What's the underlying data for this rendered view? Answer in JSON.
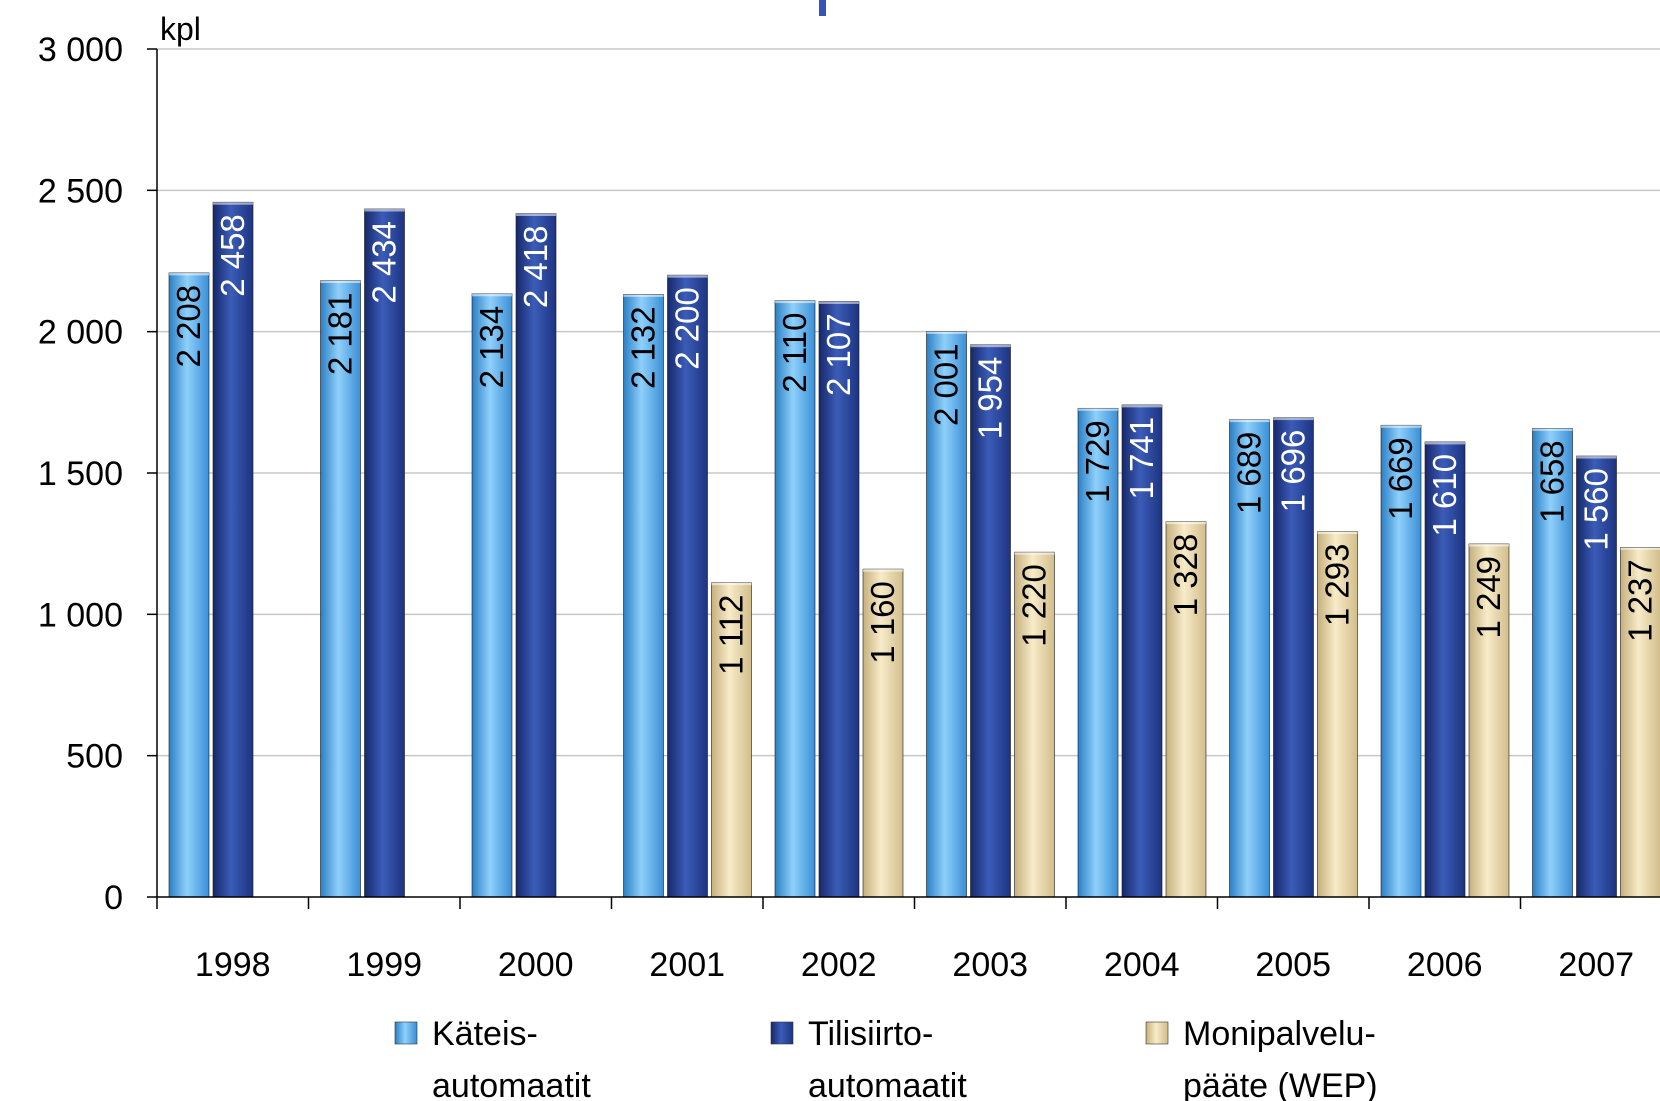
{
  "chart_data": {
    "type": "bar",
    "ylabel": "kpl",
    "ylim": [
      0,
      3000
    ],
    "yticks": [
      0,
      500,
      1000,
      1500,
      2000,
      2500,
      3000
    ],
    "ytick_labels": [
      "0",
      "500",
      "1 000",
      "1 500",
      "2 000",
      "2 500",
      "3 000"
    ],
    "categories": [
      "1998",
      "1999",
      "2000",
      "2001",
      "2002",
      "2003",
      "2004",
      "2005",
      "2006",
      "2007"
    ],
    "grid": true,
    "legend_position": "bottom",
    "series": [
      {
        "name_lines": [
          "Käteis-",
          "automaatit"
        ],
        "color": "#4aa3e6",
        "label_color": "#000000",
        "values": [
          2208,
          2181,
          2134,
          2132,
          2110,
          2001,
          1729,
          1689,
          1669,
          1658
        ],
        "labels": [
          "2 208",
          "2 181",
          "2 134",
          "2 132",
          "2 110",
          "2 001",
          "1 729",
          "1 689",
          "1 669",
          "1 658"
        ]
      },
      {
        "name_lines": [
          "Tilisiirto-",
          "automaatit"
        ],
        "color": "#23408f",
        "label_color": "#ffffff",
        "values": [
          2458,
          2434,
          2418,
          2200,
          2107,
          1954,
          1741,
          1696,
          1610,
          1560
        ],
        "labels": [
          "2 458",
          "2 434",
          "2 418",
          "2 200",
          "2 107",
          "1 954",
          "1 741",
          "1 696",
          "1 610",
          "1 560"
        ]
      },
      {
        "name_lines": [
          "Monipalvelu-",
          "pääte (WEP)"
        ],
        "color": "#e6d3a3",
        "label_color": "#000000",
        "values": [
          null,
          null,
          null,
          1112,
          1160,
          1220,
          1328,
          1293,
          1249,
          1237
        ],
        "labels": [
          "",
          "",
          "",
          "1 112",
          "1 160",
          "1 220",
          "1 328",
          "1 293",
          "1 249",
          "1 237"
        ]
      }
    ]
  }
}
